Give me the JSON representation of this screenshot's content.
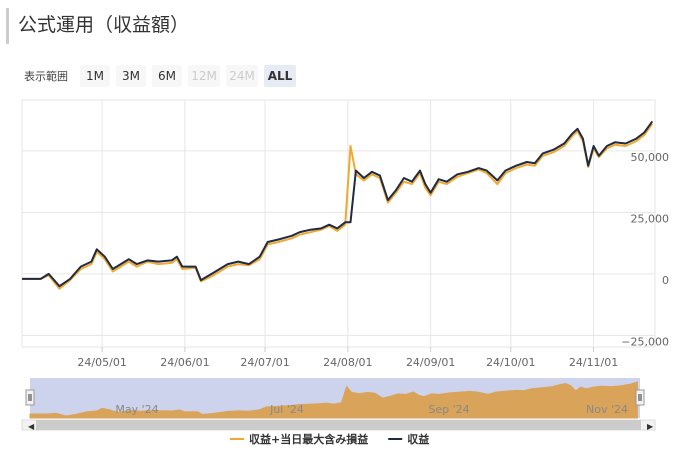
{
  "chart_data": {
    "type": "line",
    "title": "公式運用（収益額）",
    "range_selector": {
      "label": "表示範囲",
      "buttons": [
        "1M",
        "3M",
        "6M",
        "12M",
        "24M",
        "ALL"
      ],
      "disabled": [
        "12M",
        "24M"
      ],
      "selected": "ALL"
    },
    "x": [
      "24/04/01",
      "24/04/08",
      "24/04/11",
      "24/04/15",
      "24/04/19",
      "24/04/23",
      "24/04/27",
      "24/04/29",
      "24/05/02",
      "24/05/05",
      "24/05/08",
      "24/05/11",
      "24/05/14",
      "24/05/18",
      "24/05/22",
      "24/05/27",
      "24/05/29",
      "24/05/31",
      "24/06/05",
      "24/06/07",
      "24/06/11",
      "24/06/17",
      "24/06/21",
      "24/06/25",
      "24/06/29",
      "24/07/02",
      "24/07/06",
      "24/07/11",
      "24/07/14",
      "24/07/18",
      "24/07/22",
      "24/07/25",
      "24/07/28",
      "24/07/31",
      "24/08/02",
      "24/08/04",
      "24/08/07",
      "24/08/10",
      "24/08/13",
      "24/08/16",
      "24/08/19",
      "24/08/22",
      "24/08/25",
      "24/08/28",
      "24/08/30",
      "24/09/01",
      "24/09/04",
      "24/09/07",
      "24/09/11",
      "24/09/15",
      "24/09/19",
      "24/09/22",
      "24/09/26",
      "24/09/29",
      "24/10/03",
      "24/10/07",
      "24/10/10",
      "24/10/13",
      "24/10/17",
      "24/10/21",
      "24/10/24",
      "24/10/26",
      "24/10/28",
      "24/10/30",
      "24/11/01",
      "24/11/03",
      "24/11/06",
      "24/11/09",
      "24/11/13",
      "24/11/17",
      "24/11/20",
      "24/11/23"
    ],
    "series": [
      {
        "name": "収益+当日最大含み損益",
        "color": "#f0a92e",
        "values": [
          -2000,
          -2000,
          -500,
          -6000,
          -2500,
          2000,
          4000,
          9000,
          6000,
          1000,
          3000,
          5000,
          3000,
          5000,
          4000,
          4500,
          6000,
          2000,
          2500,
          -3000,
          -1000,
          3000,
          4000,
          3500,
          6000,
          12000,
          13000,
          14500,
          16000,
          17000,
          18000,
          19500,
          17500,
          20000,
          52000,
          40500,
          38000,
          40500,
          39000,
          29000,
          33000,
          37500,
          36500,
          41000,
          35000,
          32000,
          37500,
          36500,
          39500,
          41000,
          42500,
          41000,
          36500,
          41000,
          43000,
          44500,
          44000,
          48000,
          49500,
          52000,
          56000,
          58000,
          54000,
          43500,
          51000,
          47500,
          51000,
          52500,
          52000,
          54000,
          56500,
          61000
        ]
      },
      {
        "name": "収益",
        "color": "#1f2a44",
        "values": [
          -2000,
          -2000,
          0,
          -5000,
          -2000,
          3000,
          5000,
          10000,
          7000,
          2000,
          4000,
          6000,
          4000,
          5500,
          5000,
          5500,
          7000,
          3000,
          3000,
          -2500,
          0,
          4000,
          5000,
          4000,
          7000,
          13000,
          14000,
          15500,
          17000,
          18000,
          18500,
          20000,
          18500,
          21000,
          21000,
          42000,
          39000,
          41500,
          40000,
          30000,
          34000,
          39000,
          37500,
          42000,
          36500,
          33000,
          38500,
          37500,
          40500,
          41500,
          43000,
          42000,
          38000,
          42000,
          44000,
          45500,
          45000,
          49000,
          50500,
          53000,
          57000,
          59000,
          55000,
          44000,
          52000,
          48000,
          52000,
          53500,
          53000,
          55000,
          57500,
          62000
        ]
      }
    ],
    "xlim": [
      "24/04/01",
      "24/11/24"
    ],
    "xticks": [
      "24/05/01",
      "24/06/01",
      "24/07/01",
      "24/08/01",
      "24/09/01",
      "24/10/01",
      "24/11/01"
    ],
    "ylim": [
      -29700,
      70700
    ],
    "yticks": [
      {
        "value": -25000,
        "label": "−25,000"
      },
      0,
      {
        "value": 25000,
        "label": "25,000"
      },
      {
        "value": 50000,
        "label": "50,000"
      }
    ],
    "grid": true,
    "navigator": {
      "labels": [
        "May '24",
        "Jul '24",
        "Sep '24",
        "Nov '24"
      ]
    }
  }
}
